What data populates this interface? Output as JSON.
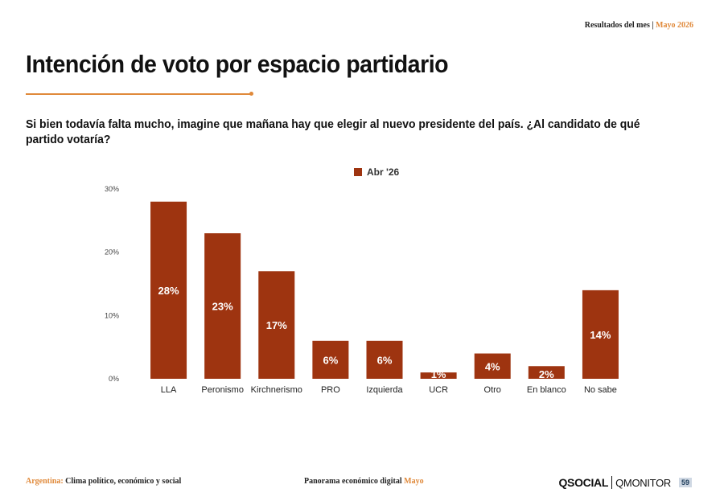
{
  "header": {
    "label": "Resultados del mes",
    "separator": "|",
    "month": "Mayo 2026"
  },
  "title": "Intención de voto por espacio partidario",
  "question": "Si bien todavía falta mucho, imagine que mañana hay que elegir al nuevo presidente del país. ¿Al candidato de qué partido votaría?",
  "colors": {
    "bar": "#9e3410",
    "accent": "#e0893a"
  },
  "chart_data": {
    "type": "bar",
    "categories": [
      "LLA",
      "Peronismo",
      "Kirchnerismo",
      "PRO",
      "Izquierda",
      "UCR",
      "Otro",
      "En blanco",
      "No sabe"
    ],
    "series": [
      {
        "name": "Abr '26",
        "values": [
          28,
          23,
          17,
          6,
          6,
          1,
          4,
          2,
          14
        ]
      }
    ],
    "data_labels": [
      "28%",
      "23%",
      "17%",
      "6%",
      "6%",
      "1%",
      "4%",
      "2%",
      "14%"
    ],
    "yticks": [
      0,
      10,
      20,
      30
    ],
    "ytick_labels": [
      "0%",
      "10%",
      "20%",
      "30%"
    ],
    "ylim": [
      0,
      30
    ],
    "legend_position": "top-center",
    "grid": false
  },
  "footer": {
    "left_label": "Argentina:",
    "left_text": "Clima político, económico y social",
    "center_text": "Panorama económico digital",
    "center_accent": "Mayo",
    "logo_social": "QSOCIAL",
    "logo_monitor": "QMONITOR",
    "page_number": "59"
  }
}
